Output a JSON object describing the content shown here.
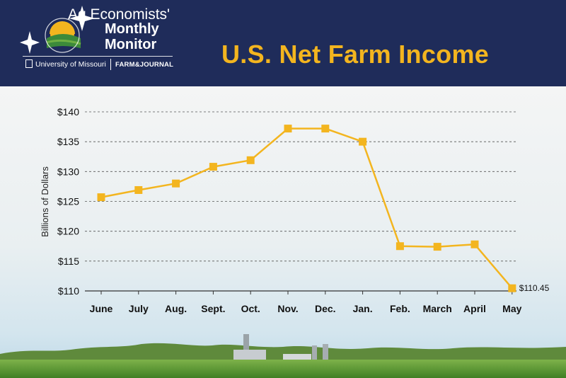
{
  "header": {
    "brand_line1": "Ag Economists'",
    "brand_line2": "Monthly",
    "brand_line3": "Monitor",
    "partner_left": "University of Missouri",
    "partner_right": "FARM&JOURNAL"
  },
  "colors": {
    "header_bg": "#1f2c5a",
    "accent": "#f3b51f",
    "series": "#f3b51f"
  },
  "chart_data": {
    "type": "line",
    "title": "U.S. Net Farm Income",
    "ylabel": "Billions of Dollars",
    "xlabel": "",
    "ylim": [
      110,
      140
    ],
    "y_ticks": [
      110,
      115,
      120,
      125,
      130,
      135,
      140
    ],
    "y_tick_labels": [
      "$110",
      "$115",
      "$120",
      "$125",
      "$130",
      "$135",
      "$140"
    ],
    "categories": [
      "June",
      "July",
      "Aug.",
      "Sept.",
      "Oct.",
      "Nov.",
      "Dec.",
      "Jan.",
      "Feb.",
      "March",
      "April",
      "May"
    ],
    "values": [
      125.7,
      126.9,
      128.0,
      130.8,
      131.9,
      137.2,
      137.2,
      135.0,
      117.5,
      117.4,
      117.8,
      110.45
    ],
    "data_labels": [
      {
        "index": 11,
        "text": "$110.45"
      }
    ],
    "grid": "horizontal-dashed",
    "legend": "none"
  }
}
